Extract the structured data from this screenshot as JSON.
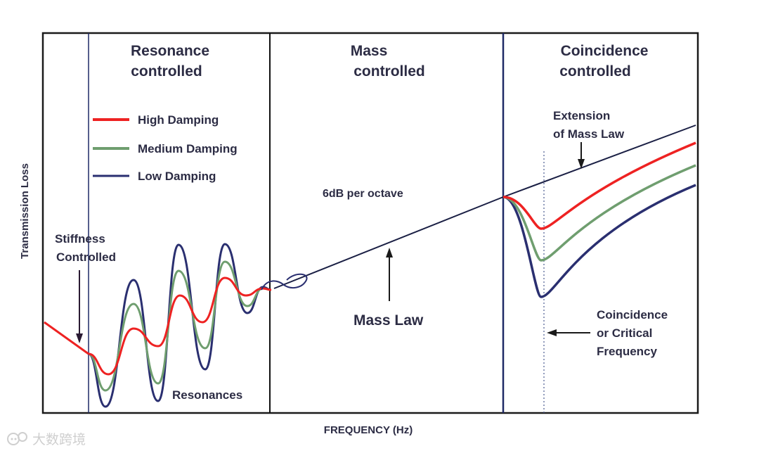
{
  "axes": {
    "ylabel": "Transmission Loss",
    "xlabel": "FREQUENCY (Hz)"
  },
  "regions": [
    {
      "line1": "Resonance",
      "line2": "controlled"
    },
    {
      "line1": "Mass",
      "line2": "controlled"
    },
    {
      "line1": "Coincidence",
      "line2": "controlled"
    }
  ],
  "legend": {
    "high": {
      "label": "High Damping",
      "color": "#ee2222"
    },
    "medium": {
      "label": "Medium Damping",
      "color": "#6f9e6f"
    },
    "low": {
      "label": "Low Damping",
      "color": "#2a2f70"
    }
  },
  "annotations": {
    "stiffness1": "Stiffness",
    "stiffness2": "Controlled",
    "resonances": "Resonances",
    "slope": "6dB per octave",
    "mass_law": "Mass Law",
    "extension1": "Extension",
    "extension2": "of Mass Law",
    "coincidence1": "Coincidence",
    "coincidence2": "or Critical",
    "coincidence3": "Frequency"
  },
  "watermark": {
    "text": "大数跨境",
    "icon": "speech-bubble-logo-icon"
  },
  "colors": {
    "frame": "#1a1a1a",
    "divider": "#1f2a66",
    "mass_line": "#1a1f44"
  }
}
